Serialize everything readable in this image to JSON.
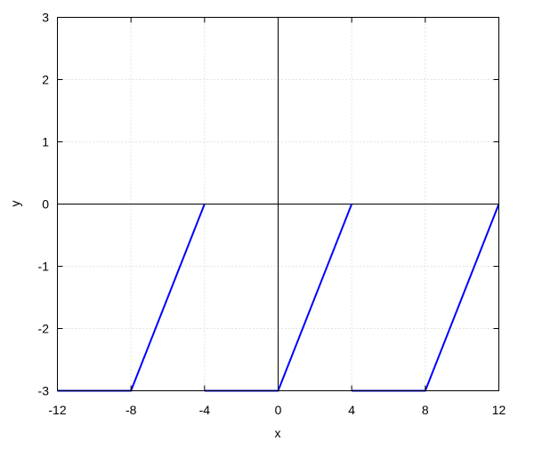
{
  "chart_data": {
    "type": "line",
    "title": "",
    "xlabel": "x",
    "ylabel": "y",
    "xlim": [
      -12,
      12
    ],
    "ylim": [
      -3,
      3
    ],
    "xticks": [
      -12,
      -8,
      -4,
      0,
      4,
      8,
      12
    ],
    "yticks": [
      -3,
      -2,
      -1,
      0,
      1,
      2,
      3
    ],
    "xtick_labels": [
      "-12",
      "-8",
      "-4",
      "0",
      "4",
      "8",
      "12"
    ],
    "ytick_labels": [
      "-3",
      "-2",
      "-1",
      "0",
      "1",
      "2",
      "3"
    ],
    "grid": true,
    "zero_axes": true,
    "series": [
      {
        "color": "#0000ff",
        "segments": [
          [
            [
              -12,
              -3
            ],
            [
              -8,
              -3
            ],
            [
              -4,
              0
            ]
          ],
          [
            [
              -4,
              -3
            ],
            [
              0,
              -3
            ],
            [
              4,
              0
            ]
          ],
          [
            [
              4,
              -3
            ],
            [
              8,
              -3
            ],
            [
              12,
              0
            ]
          ]
        ]
      }
    ]
  }
}
